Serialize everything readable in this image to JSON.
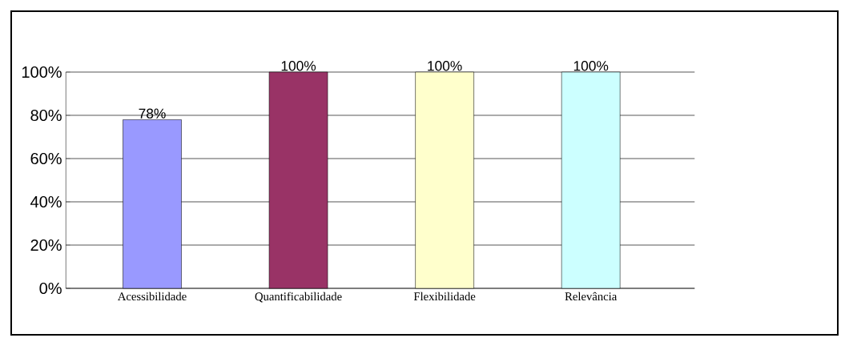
{
  "chart_data": {
    "type": "bar",
    "categories": [
      "Acessibilidade",
      "Quantificabilidade",
      "Flexibilidade",
      "Relevância"
    ],
    "values": [
      78,
      100,
      100,
      100
    ],
    "colors": [
      "#9999ff",
      "#993366",
      "#ffffcc",
      "#ccffff"
    ],
    "value_labels": [
      "78%",
      "100%",
      "100%",
      "100%"
    ],
    "ylim": [
      0,
      100
    ],
    "yticks": [
      {
        "value": 0,
        "label": "0%"
      },
      {
        "value": 20,
        "label": "20%"
      },
      {
        "value": 40,
        "label": "40%"
      },
      {
        "value": 60,
        "label": "60%"
      },
      {
        "value": 80,
        "label": "80%"
      },
      {
        "value": 100,
        "label": "100%"
      }
    ],
    "grid": "y"
  }
}
